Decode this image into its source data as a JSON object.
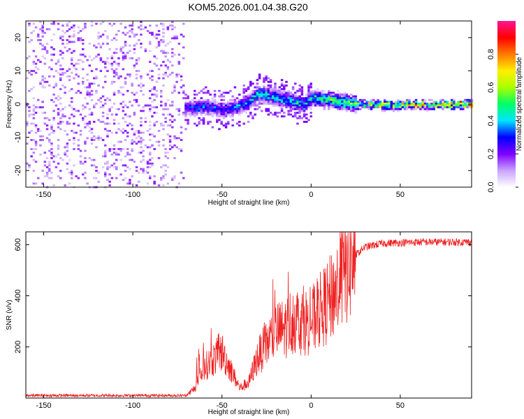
{
  "title": "KOM5.2026.001.04.38.G20",
  "chart_data": [
    {
      "type": "heatmap",
      "xlabel": "Height of straight line (km)",
      "ylabel": "Frequency (Hz)",
      "xlim": [
        -160,
        90
      ],
      "ylim": [
        -25,
        25
      ],
      "xticks": [
        -150,
        -100,
        -50,
        0,
        50
      ],
      "yticks": [
        -20,
        -10,
        0,
        10,
        20
      ],
      "colorbar": {
        "label": "Normalized spectral amplitude",
        "range": [
          0,
          1
        ],
        "ticks": [
          0.0,
          0.2,
          0.4,
          0.6,
          0.8
        ],
        "colors": [
          "#ffffff",
          "#c9a3ff",
          "#8000ff",
          "#0000ff",
          "#00e5ff",
          "#00ff66",
          "#aaff00",
          "#ffee00",
          "#ff7a00",
          "#ff0000",
          "#ff1493"
        ]
      },
      "ridge": [
        {
          "x": -70,
          "f": -1.0,
          "a": 0.35
        },
        {
          "x": -60,
          "f": -0.5,
          "a": 0.4
        },
        {
          "x": -50,
          "f": -1.5,
          "a": 0.35
        },
        {
          "x": -42,
          "f": -0.5,
          "a": 0.45
        },
        {
          "x": -35,
          "f": 1.0,
          "a": 0.45
        },
        {
          "x": -30,
          "f": 3.5,
          "a": 0.55
        },
        {
          "x": -20,
          "f": 2.0,
          "a": 0.5
        },
        {
          "x": -10,
          "f": 1.0,
          "a": 0.55
        },
        {
          "x": -5,
          "f": 0.0,
          "a": 0.5
        },
        {
          "x": 0,
          "f": 2.0,
          "a": 0.55
        },
        {
          "x": 10,
          "f": 1.5,
          "a": 0.6
        },
        {
          "x": 20,
          "f": 0.5,
          "a": 0.65
        },
        {
          "x": 30,
          "f": 0.0,
          "a": 0.75
        },
        {
          "x": 50,
          "f": 0.0,
          "a": 0.8
        },
        {
          "x": 70,
          "f": 0.0,
          "a": 0.9
        },
        {
          "x": 90,
          "f": 0.3,
          "a": 0.95
        }
      ]
    },
    {
      "type": "line",
      "xlabel": "Height of straight line (km)",
      "ylabel": "SNR (v/v)",
      "xlim": [
        -160,
        90
      ],
      "ylim": [
        0,
        650
      ],
      "xticks": [
        -150,
        -100,
        -50,
        0,
        50
      ],
      "yticks": [
        200,
        400,
        600
      ],
      "series": [
        {
          "name": "SNR",
          "color": "#ee2222",
          "envelope": [
            {
              "x": -160,
              "y": 10
            },
            {
              "x": -70,
              "y": 10
            },
            {
              "x": -65,
              "y": 40
            },
            {
              "x": -60,
              "y": 120
            },
            {
              "x": -55,
              "y": 150
            },
            {
              "x": -50,
              "y": 180
            },
            {
              "x": -45,
              "y": 110
            },
            {
              "x": -40,
              "y": 40
            },
            {
              "x": -35,
              "y": 60
            },
            {
              "x": -30,
              "y": 160
            },
            {
              "x": -25,
              "y": 210
            },
            {
              "x": -20,
              "y": 260
            },
            {
              "x": -15,
              "y": 270
            },
            {
              "x": -10,
              "y": 310
            },
            {
              "x": -5,
              "y": 300
            },
            {
              "x": 0,
              "y": 300
            },
            {
              "x": 5,
              "y": 340
            },
            {
              "x": 10,
              "y": 380
            },
            {
              "x": 15,
              "y": 440
            },
            {
              "x": 20,
              "y": 510
            },
            {
              "x": 25,
              "y": 560
            },
            {
              "x": 30,
              "y": 590
            },
            {
              "x": 40,
              "y": 605
            },
            {
              "x": 60,
              "y": 610
            },
            {
              "x": 90,
              "y": 610
            }
          ]
        }
      ]
    }
  ]
}
